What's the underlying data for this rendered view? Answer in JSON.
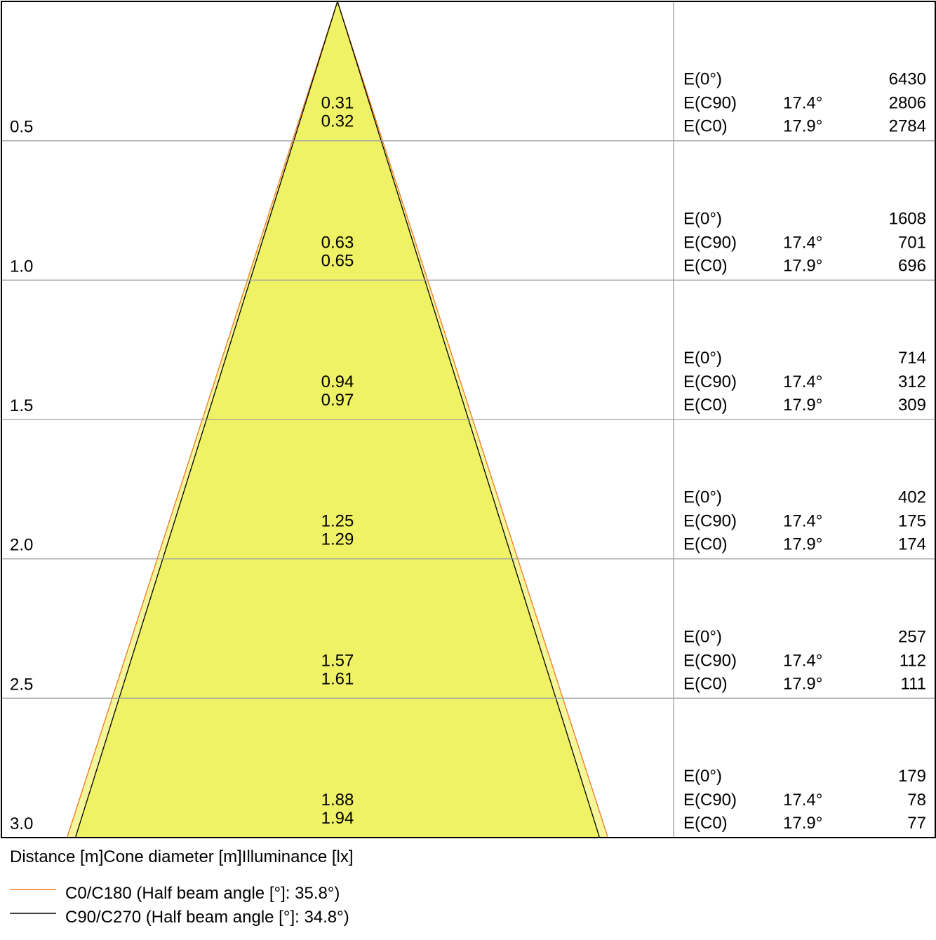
{
  "chart_data": {
    "type": "cone-diagram",
    "header_labels": {
      "distance": "Distance [m]",
      "diameter": "Cone diameter [m]",
      "illuminance": "Illuminance [lx]"
    },
    "rows": [
      {
        "distance": "0.5",
        "d_c90": "0.31",
        "d_c0": "0.32",
        "e0": "6430",
        "ec90": "2806",
        "ec0": "2784"
      },
      {
        "distance": "1.0",
        "d_c90": "0.63",
        "d_c0": "0.65",
        "e0": "1608",
        "ec90": "701",
        "ec0": "696"
      },
      {
        "distance": "1.5",
        "d_c90": "0.94",
        "d_c0": "0.97",
        "e0": "714",
        "ec90": "312",
        "ec0": "309"
      },
      {
        "distance": "2.0",
        "d_c90": "1.25",
        "d_c0": "1.29",
        "e0": "402",
        "ec90": "175",
        "ec0": "174"
      },
      {
        "distance": "2.5",
        "d_c90": "1.57",
        "d_c0": "1.61",
        "e0": "257",
        "ec90": "112",
        "ec0": "111"
      },
      {
        "distance": "3.0",
        "d_c90": "1.88",
        "d_c0": "1.94",
        "e0": "179",
        "ec90": "78",
        "ec0": "77"
      }
    ],
    "row_labels": {
      "e0": "E(0°)",
      "ec90": "E(C90)",
      "ec0": "E(C0)"
    },
    "angles": {
      "c90": "17.4°",
      "c0": "17.9°"
    },
    "max_distance": 3.0,
    "legend": [
      {
        "label": "C0/C180 (Half beam angle [°]: 35.8°)",
        "color": "#f07820",
        "half_angle": 35.8,
        "diameter_at_max": 1.94
      },
      {
        "label": "C90/C270 (Half beam angle [°]: 34.8°)",
        "color": "#000000",
        "half_angle": 34.8,
        "diameter_at_max": 1.88
      }
    ],
    "colors": {
      "fill_inner": "#eff264",
      "fill_outer": "#f5f59a",
      "grid": "#a0a0a0"
    }
  }
}
